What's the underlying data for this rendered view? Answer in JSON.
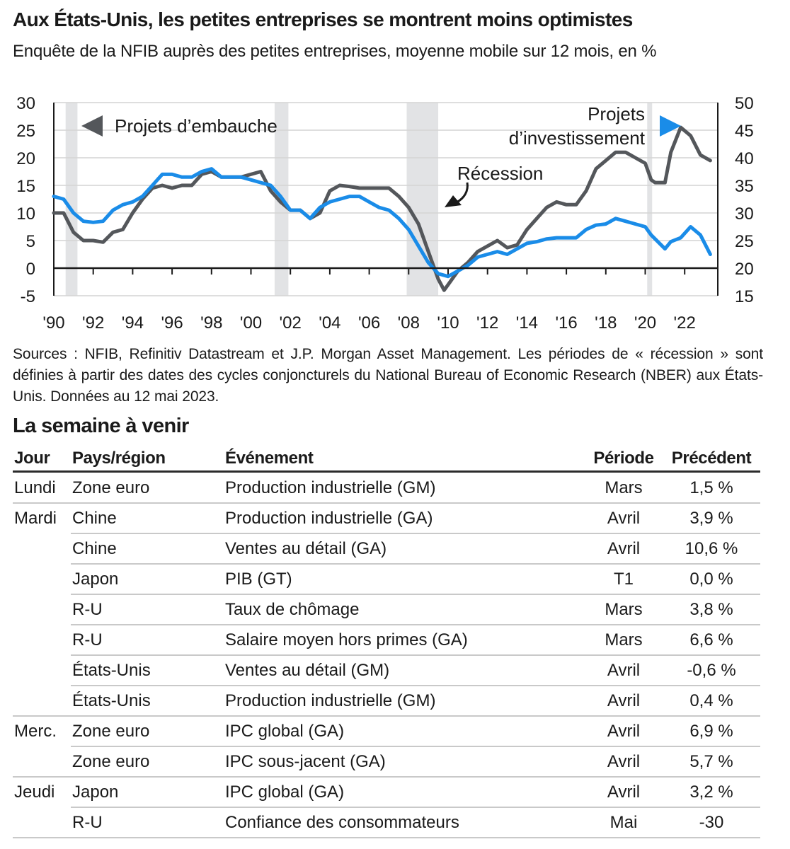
{
  "header": {
    "title": "Aux États-Unis, les petites entreprises se montrent moins optimistes",
    "subtitle": "Enquête de la NFIB auprès des petites entreprises, moyenne mobile sur 12 mois, en %"
  },
  "chart_data": {
    "type": "line",
    "x_ticks": [
      "'90",
      "'92",
      "'94",
      "'96",
      "'98",
      "'00",
      "'02",
      "'04",
      "'06",
      "'08",
      "'10",
      "'12",
      "'14",
      "'16",
      "'18",
      "'20",
      "'22"
    ],
    "x_range": [
      1990,
      2023.6
    ],
    "left_axis": {
      "ticks": [
        "30",
        "25",
        "20",
        "15",
        "10",
        "5",
        "0",
        "-5"
      ],
      "range": [
        -5,
        30
      ]
    },
    "right_axis": {
      "ticks": [
        "50",
        "45",
        "40",
        "35",
        "30",
        "25",
        "20",
        "15"
      ],
      "range": [
        15,
        50
      ]
    },
    "grid": true,
    "recessions": [
      [
        1990.6,
        1991.2
      ],
      [
        2001.2,
        2001.9
      ],
      [
        2007.9,
        2009.5
      ],
      [
        2020.1,
        2020.35
      ]
    ],
    "annotations": {
      "hiring": "Projets d’embauche",
      "investment_line1": "Projets",
      "investment_line2": "d’investissement",
      "recession": "Récession"
    },
    "colors": {
      "hiring": "#54575b",
      "investment": "#1a8ce8",
      "recession": "#e2e3e5"
    },
    "series": [
      {
        "name": "Projets d’embauche",
        "axis": "left",
        "x": [
          1990,
          1990.5,
          1991,
          1991.5,
          1992,
          1992.5,
          1993,
          1993.5,
          1994,
          1994.5,
          1995,
          1995.5,
          1996,
          1996.5,
          1997,
          1997.5,
          1998,
          1998.5,
          1999,
          1999.5,
          2000,
          2000.5,
          2001,
          2001.5,
          2002,
          2002.5,
          2003,
          2003.5,
          2004,
          2004.5,
          2005,
          2005.5,
          2006,
          2006.5,
          2007,
          2007.5,
          2008,
          2008.5,
          2009,
          2009.5,
          2009.8,
          2010,
          2010.5,
          2011,
          2011.5,
          2012,
          2012.5,
          2013,
          2013.5,
          2014,
          2014.5,
          2015,
          2015.5,
          2016,
          2016.5,
          2017,
          2017.5,
          2018,
          2018.5,
          2019,
          2019.5,
          2020,
          2020.3,
          2020.5,
          2021,
          2021.3,
          2021.8,
          2022.3,
          2022.8,
          2023.3
        ],
        "values": [
          10,
          10,
          6.5,
          5,
          5,
          4.7,
          6.5,
          7,
          10,
          12.5,
          14.5,
          15,
          14.5,
          15,
          15,
          17,
          17.5,
          16.5,
          16.5,
          16.5,
          17,
          17.5,
          14,
          12,
          10.5,
          10.5,
          9,
          10,
          14,
          15,
          14.8,
          14.5,
          14.5,
          14.5,
          14.5,
          13,
          11,
          8,
          3,
          -2,
          -4,
          -3,
          -0.5,
          1,
          3,
          4,
          5,
          3.7,
          4.2,
          7,
          9,
          11,
          12,
          11.5,
          11.5,
          14,
          18,
          19.5,
          21,
          21,
          20,
          19,
          16,
          15.5,
          15.5,
          21,
          25.5,
          24,
          20.5,
          19.5
        ]
      },
      {
        "name": "Projets d’investissement",
        "axis": "right",
        "x": [
          1990,
          1990.5,
          1991,
          1991.5,
          1992,
          1992.5,
          1993,
          1993.5,
          1994,
          1994.5,
          1995,
          1995.5,
          1996,
          1996.5,
          1997,
          1997.5,
          1998,
          1998.5,
          1999,
          1999.5,
          2000,
          2000.5,
          2001,
          2001.5,
          2002,
          2002.5,
          2003,
          2003.5,
          2004,
          2004.5,
          2005,
          2005.5,
          2006,
          2006.5,
          2007,
          2007.5,
          2008,
          2008.5,
          2009,
          2009.5,
          2010,
          2010.5,
          2011,
          2011.5,
          2012,
          2012.5,
          2013,
          2013.5,
          2014,
          2014.5,
          2015,
          2015.5,
          2016,
          2016.5,
          2017,
          2017.5,
          2018,
          2018.5,
          2019,
          2019.5,
          2020,
          2020.3,
          2021,
          2021.3,
          2021.8,
          2022.3,
          2022.8,
          2023.3
        ],
        "values": [
          33,
          32.5,
          30,
          28.5,
          28.3,
          28.5,
          30.5,
          31.5,
          32,
          33,
          35,
          37,
          37,
          36.5,
          36.5,
          37.5,
          38,
          36.5,
          36.5,
          36.5,
          36,
          35.5,
          35,
          33,
          30.5,
          30.5,
          29,
          31,
          32,
          32.5,
          33,
          33,
          32,
          31,
          30.5,
          29,
          27,
          24,
          21,
          19,
          18.5,
          19.5,
          20.5,
          22,
          22.5,
          23,
          22.5,
          23.5,
          24.5,
          24.8,
          25.3,
          25.5,
          25.5,
          25.5,
          27,
          27.8,
          28,
          29,
          28.5,
          28,
          27.5,
          26,
          23.5,
          24.8,
          25.5,
          27.5,
          26,
          22.5
        ]
      }
    ]
  },
  "sources": "Sources : NFIB, Refinitiv Datastream et J.P. Morgan Asset Management. Les périodes de « récession » sont définies à partir des dates des cycles conjoncturels du National Bureau of Economic Research (NBER) aux États-Unis. Données au 12 mai 2023.",
  "table": {
    "title": "La semaine à venir",
    "columns": [
      "Jour",
      "Pays/région",
      "Événement",
      "Période",
      "Précédent"
    ],
    "rows": [
      {
        "day": "Lundi",
        "country": "Zone euro",
        "event": "Production industrielle (GM)",
        "period": "Mars",
        "previous": "1,5 %"
      },
      {
        "day": "Mardi",
        "country": "Chine",
        "event": "Production industrielle (GA)",
        "period": "Avril",
        "previous": "3,9 %"
      },
      {
        "day": "",
        "country": "Chine",
        "event": "Ventes au détail (GA)",
        "period": "Avril",
        "previous": "10,6 %"
      },
      {
        "day": "",
        "country": "Japon",
        "event": "PIB (GT)",
        "period": "T1",
        "previous": "0,0 %"
      },
      {
        "day": "",
        "country": "R-U",
        "event": "Taux de chômage",
        "period": "Mars",
        "previous": "3,8 %"
      },
      {
        "day": "",
        "country": "R-U",
        "event": "Salaire moyen hors primes (GA)",
        "period": "Mars",
        "previous": "6,6 %"
      },
      {
        "day": "",
        "country": "États-Unis",
        "event": "Ventes au détail (GM)",
        "period": "Avril",
        "previous": "-0,6 %"
      },
      {
        "day": "",
        "country": "États-Unis",
        "event": "Production industrielle (GM)",
        "period": "Avril",
        "previous": "0,4 %"
      },
      {
        "day": "Merc.",
        "country": "Zone euro",
        "event": "IPC global (GA)",
        "period": "Avril",
        "previous": "6,9 %"
      },
      {
        "day": "",
        "country": "Zone euro",
        "event": "IPC sous-jacent (GA)",
        "period": "Avril",
        "previous": "5,7 %"
      },
      {
        "day": "Jeudi",
        "country": "Japon",
        "event": "IPC global (GA)",
        "period": "Avril",
        "previous": "3,2 %"
      },
      {
        "day": "",
        "country": "R-U",
        "event": "Confiance des consommateurs",
        "period": "Mai",
        "previous": "-30"
      }
    ]
  }
}
